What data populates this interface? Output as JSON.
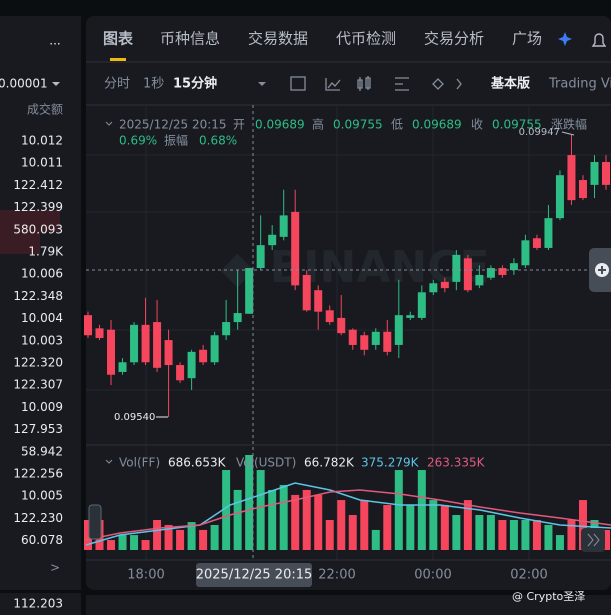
{
  "left_panel": {
    "menu": "...",
    "precision": "0.00001",
    "column_header": "成交额",
    "values": [
      "10.012",
      "10.011",
      "122.412",
      "122.399",
      "580.093",
      "1.79K",
      "10.006",
      "122.348",
      "10.004",
      "10.003",
      "122.320",
      "122.307",
      "10.009",
      "127.953",
      "58.942",
      "122.256",
      "10.005",
      "122.230",
      "60.078"
    ],
    "more": ">",
    "footer_value": "112.203"
  },
  "tabs": [
    "图表",
    "币种信息",
    "交易数据",
    "代币检测",
    "交易分析",
    "广场"
  ],
  "toolbar": {
    "intervals": [
      "分时",
      "1秒",
      "15分钟"
    ],
    "mode": "基本版",
    "view": "Trading View"
  },
  "chart": {
    "info": {
      "time": "2025/12/25 20:15",
      "open_label": "开",
      "open": "0.09689",
      "high_label": "高",
      "high": "0.09755",
      "low_label": "低",
      "low": "0.09689",
      "close_label": "收",
      "close": "0.09755",
      "change_label": "涨跌幅",
      "change": "0.69%",
      "amplitude_label": "振幅",
      "amplitude": "0.68%"
    },
    "high_marker": 0.09947,
    "low_marker": {
      "value": 0.0954,
      "label": "0.09540"
    },
    "candles": [
      [
        0.09687,
        0.09692,
        0.09654,
        0.09658
      ],
      [
        0.09668,
        0.09673,
        0.09651,
        0.09654
      ],
      [
        0.09666,
        0.0968,
        0.09586,
        0.09601
      ],
      [
        0.09605,
        0.09625,
        0.09601,
        0.09619
      ],
      [
        0.09619,
        0.09677,
        0.09615,
        0.09673
      ],
      [
        0.09673,
        0.09712,
        0.09615,
        0.09619
      ],
      [
        0.09677,
        0.09709,
        0.09605,
        0.09611
      ],
      [
        0.09651,
        0.09666,
        0.0954,
        0.09615
      ],
      [
        0.09615,
        0.09619,
        0.09589,
        0.09593
      ],
      [
        0.09596,
        0.09637,
        0.09579,
        0.09634
      ],
      [
        0.09637,
        0.09644,
        0.09615,
        0.09619
      ],
      [
        0.09619,
        0.09663,
        0.09615,
        0.09658
      ],
      [
        0.09658,
        0.09709,
        0.09651,
        0.09677
      ],
      [
        0.09677,
        0.09752,
        0.09666,
        0.0969
      ],
      [
        0.09689,
        0.09755,
        0.09689,
        0.09755
      ],
      [
        0.09755,
        0.09831,
        0.09752,
        0.09788
      ],
      [
        0.09788,
        0.09817,
        0.09781,
        0.09803
      ],
      [
        0.098,
        0.09868,
        0.09795,
        0.09831
      ],
      [
        0.09836,
        0.09868,
        0.09723,
        0.0973
      ],
      [
        0.09745,
        0.09752,
        0.09692,
        0.09694
      ],
      [
        0.09723,
        0.0973,
        0.09666,
        0.09692
      ],
      [
        0.09694,
        0.09701,
        0.09673,
        0.09677
      ],
      [
        0.09683,
        0.09716,
        0.09658,
        0.09661
      ],
      [
        0.09666,
        0.09668,
        0.09637,
        0.09644
      ],
      [
        0.09658,
        0.09663,
        0.09629,
        0.09637
      ],
      [
        0.09644,
        0.09668,
        0.09637,
        0.09663
      ],
      [
        0.09663,
        0.0968,
        0.09629,
        0.09634
      ],
      [
        0.09644,
        0.09738,
        0.09625,
        0.09687
      ],
      [
        0.09683,
        0.09692,
        0.0968,
        0.09687
      ],
      [
        0.09683,
        0.0973,
        0.0968,
        0.0972
      ],
      [
        0.0972,
        0.09738,
        0.09716,
        0.09733
      ],
      [
        0.09735,
        0.09741,
        0.0972,
        0.09726
      ],
      [
        0.09735,
        0.09781,
        0.09723,
        0.09774
      ],
      [
        0.09769,
        0.09774,
        0.0972,
        0.09723
      ],
      [
        0.0973,
        0.09759,
        0.09726,
        0.09745
      ],
      [
        0.09741,
        0.09759,
        0.09738,
        0.09755
      ],
      [
        0.09755,
        0.09759,
        0.09741,
        0.09745
      ],
      [
        0.09752,
        0.09769,
        0.09745,
        0.09762
      ],
      [
        0.09759,
        0.09803,
        0.09755,
        0.09795
      ],
      [
        0.09798,
        0.09803,
        0.09781,
        0.09784
      ],
      [
        0.09784,
        0.09846,
        0.09781,
        0.09827
      ],
      [
        0.09827,
        0.09896,
        0.09824,
        0.09889
      ],
      [
        0.09918,
        0.09947,
        0.09846,
        0.09853
      ],
      [
        0.09882,
        0.09889,
        0.09853,
        0.09856
      ],
      [
        0.09875,
        0.09918,
        0.09856,
        0.09908
      ],
      [
        0.09908,
        0.09918,
        0.09868,
        0.09875
      ]
    ],
    "volume": {
      "label": "Vol(FF)",
      "value": "686.653K",
      "quote_label": "Vol(USDT)",
      "quote_value": "66.782K",
      "ma1": "375.279K",
      "ma2": "263.335K",
      "bars": [
        217,
        217,
        72,
        108,
        108,
        72,
        217,
        181,
        145,
        202,
        145,
        181,
        578,
        434,
        686.653,
        578,
        434,
        470,
        398,
        434,
        398,
        217,
        361,
        253,
        361,
        145,
        325,
        578,
        325,
        578,
        361,
        325,
        253,
        361,
        253,
        253,
        217,
        217,
        217,
        217,
        181,
        108,
        217,
        361,
        217,
        145
      ]
    },
    "time_labels": [
      "18:00",
      "2025/12/25 20:15",
      "22:00",
      "00:00",
      "02:00"
    ]
  },
  "watermark": "@ Crypto圣泽"
}
